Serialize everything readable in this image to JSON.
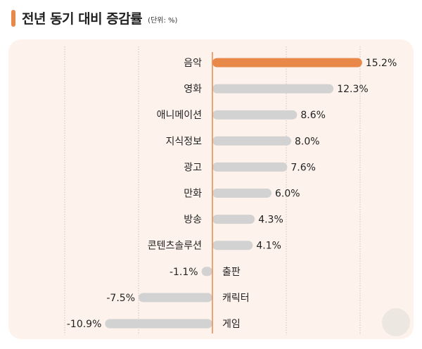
{
  "header": {
    "title": "전년 동기 대비 증감률",
    "unit": "(단위: %)"
  },
  "chart_data": {
    "type": "bar",
    "orientation": "horizontal",
    "title": "전년 동기 대비 증감률",
    "unit": "(단위: %)",
    "categories": [
      "음악",
      "영화",
      "애니메이션",
      "지식정보",
      "광고",
      "만화",
      "방송",
      "콘텐츠솔루션",
      "출판",
      "캐릭터",
      "게임"
    ],
    "values": [
      15.2,
      12.3,
      8.6,
      8.0,
      7.6,
      6.0,
      4.3,
      4.1,
      -1.1,
      -7.5,
      -10.9
    ],
    "value_labels": [
      "15.2%",
      "12.3%",
      "8.6%",
      "8.0%",
      "7.6%",
      "6.0%",
      "4.3%",
      "4.1%",
      "-1.1%",
      "-7.5%",
      "-10.9%"
    ],
    "xlim": [
      -15,
      15
    ],
    "grid": true,
    "colors": {
      "highlight": "#e8894a",
      "default": "#d2d2d2",
      "background": "#fdf3ec"
    }
  }
}
